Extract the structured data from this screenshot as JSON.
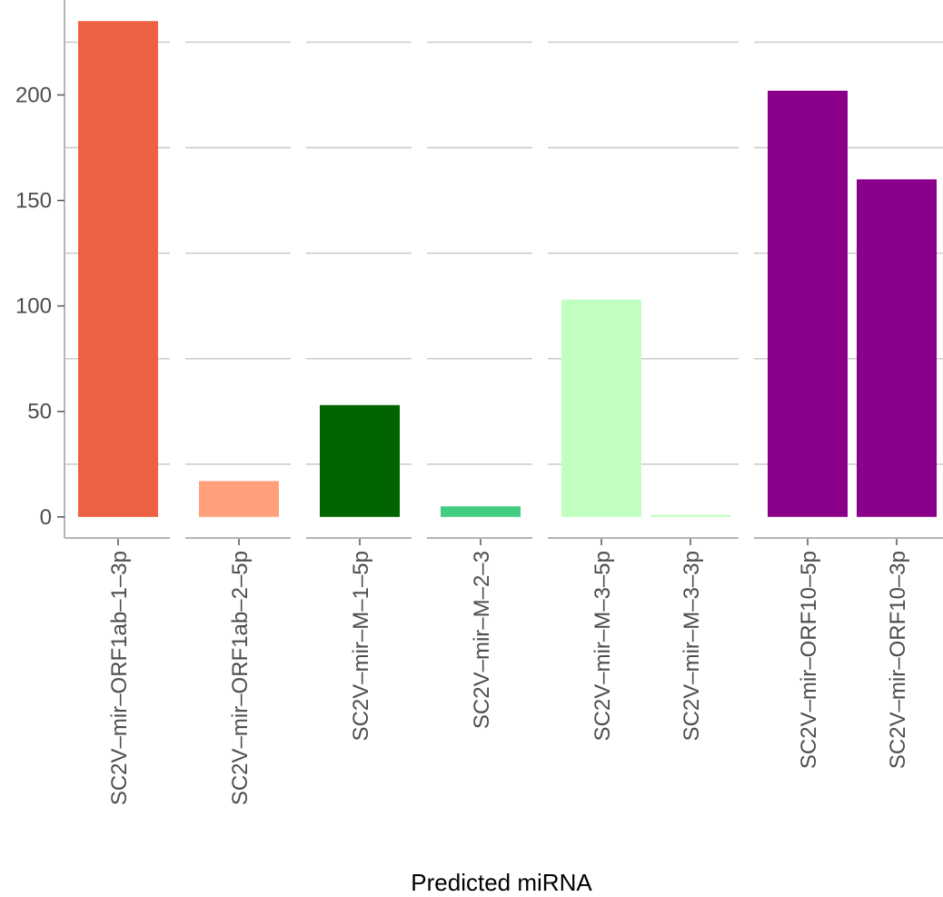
{
  "chart_data": {
    "type": "bar",
    "xlabel": "Predicted miRNA",
    "ylabel": "",
    "ylim": [
      -10,
      245
    ],
    "yticks": [
      0,
      50,
      100,
      150,
      200
    ],
    "grid": "horizontal minor lines between panels",
    "panels": [
      {
        "bars": [
          {
            "category": "SC2V–mir–ORF1ab–1–3p",
            "value": 235,
            "color": "#EE6044"
          }
        ]
      },
      {
        "bars": [
          {
            "category": "SC2V–mir–ORF1ab–2–5p",
            "value": 17,
            "color": "#FFA07A"
          }
        ]
      },
      {
        "bars": [
          {
            "category": "SC2V–mir–M–1–5p",
            "value": 53,
            "color": "#006400"
          }
        ]
      },
      {
        "bars": [
          {
            "category": "SC2V–mir–M–2–3",
            "value": 5,
            "color": "#43CD80"
          }
        ]
      },
      {
        "bars": [
          {
            "category": "SC2V–mir–M–3–5p",
            "value": 103,
            "color": "#C1FFC1"
          },
          {
            "category": "SC2V–mir–M–3–3p",
            "value": 1,
            "color": "#C1FFC1"
          }
        ]
      },
      {
        "bars": [
          {
            "category": "SC2V–mir–ORF10–5p",
            "value": 202,
            "color": "#8B008B"
          },
          {
            "category": "SC2V–mir–ORF10–3p",
            "value": 160,
            "color": "#8B008B"
          }
        ]
      }
    ]
  }
}
